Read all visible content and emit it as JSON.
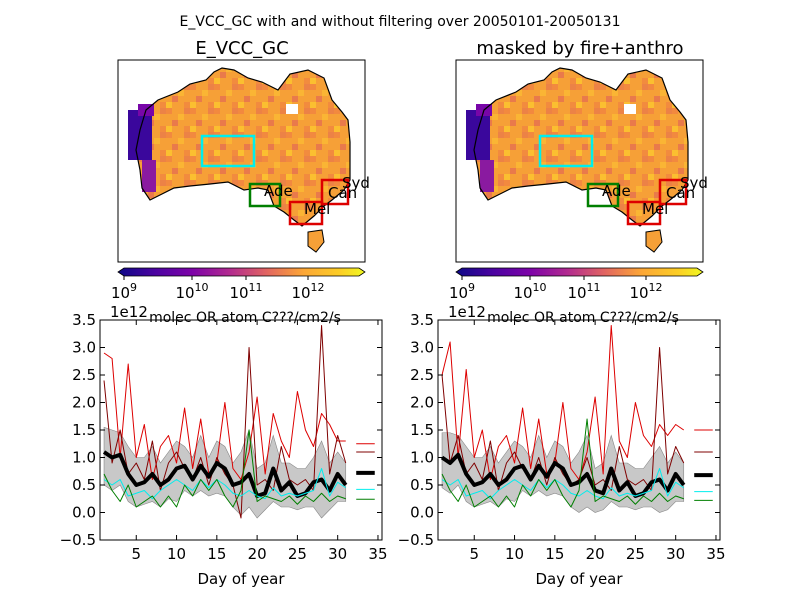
{
  "figure": {
    "suptitle": "E_VCC_GC with and without filtering over 20050101-20050131"
  },
  "maps": [
    {
      "title": "E_VCC_GC",
      "colorbar": {
        "tick_labels": [
          "10^9",
          "10^10",
          "10^11",
          "10^12"
        ],
        "exponents": [
          "9",
          "10",
          "11",
          "12"
        ],
        "base": "10",
        "label": "molec OR atom C???/cm2/s"
      },
      "regions": [
        {
          "name": "Syd",
          "color": "#dd0000"
        },
        {
          "name": "Can",
          "color": "#dd0000"
        },
        {
          "name": "Mel",
          "color": "#dd0000"
        },
        {
          "name": "Ade",
          "color": "#007f00"
        },
        {
          "name": "",
          "color": "#00eeee"
        }
      ]
    },
    {
      "title": "masked by fire+anthro",
      "colorbar": {
        "tick_labels": [
          "10^9",
          "10^10",
          "10^11",
          "10^12"
        ],
        "exponents": [
          "9",
          "10",
          "11",
          "12"
        ],
        "base": "10",
        "label": "molec OR atom C???/cm2/s"
      },
      "regions": [
        {
          "name": "Syd",
          "color": "#dd0000"
        },
        {
          "name": "Can",
          "color": "#dd0000"
        },
        {
          "name": "Mel",
          "color": "#dd0000"
        },
        {
          "name": "Ade",
          "color": "#007f00"
        },
        {
          "name": "",
          "color": "#00eeee"
        }
      ]
    }
  ],
  "chart_data": [
    {
      "type": "line",
      "xlabel": "Day of year",
      "ylabel": "",
      "xlim": [
        0.5,
        35.5
      ],
      "ylim": [
        -0.5,
        3.5
      ],
      "xticks": [
        5,
        10,
        15,
        20,
        25,
        30,
        35
      ],
      "yticks": [
        -0.5,
        0.0,
        0.5,
        1.0,
        1.5,
        2.0,
        2.5,
        3.0,
        3.5
      ],
      "ytick_labels": [
        "−0.5",
        "0.0",
        "0.5",
        "1.0",
        "1.5",
        "2.0",
        "2.5",
        "3.0",
        "3.5"
      ],
      "y_offset_label": "1e12",
      "x": [
        1,
        2,
        3,
        4,
        5,
        6,
        7,
        8,
        9,
        10,
        11,
        12,
        13,
        14,
        15,
        16,
        17,
        18,
        19,
        20,
        21,
        22,
        23,
        24,
        25,
        26,
        27,
        28,
        29,
        30,
        31
      ],
      "series": [
        {
          "color": "#dd0000",
          "linewidth": 1,
          "values": [
            2.9,
            2.8,
            1.0,
            2.7,
            1.0,
            1.6,
            0.6,
            1.2,
            1.4,
            0.9,
            1.9,
            0.8,
            1.7,
            0.7,
            0.9,
            2.0,
            0.8,
            0.6,
            1.1,
            2.1,
            0.7,
            1.8,
            1.3,
            1.0,
            2.2,
            1.5,
            1.2,
            1.8,
            1.6,
            1.3,
            1.3
          ],
          "legend_y": 1.25
        },
        {
          "color": "#7f0000",
          "linewidth": 1,
          "values": [
            2.4,
            0.9,
            1.5,
            0.7,
            0.9,
            0.6,
            1.3,
            0.4,
            0.9,
            1.1,
            0.8,
            0.6,
            1.0,
            0.5,
            1.0,
            0.7,
            0.5,
            -0.1,
            3.0,
            0.5,
            0.6,
            0.4,
            1.2,
            0.6,
            0.5,
            0.6,
            0.4,
            3.4,
            0.7,
            1.4,
            0.9
          ],
          "legend_y": 1.1
        },
        {
          "color": "#000000",
          "linewidth": 4,
          "values": [
            1.1,
            1.0,
            1.05,
            0.7,
            0.5,
            0.55,
            0.7,
            0.5,
            0.6,
            0.8,
            0.85,
            0.6,
            0.85,
            0.65,
            0.9,
            0.8,
            0.5,
            0.55,
            0.7,
            0.3,
            0.35,
            0.8,
            0.4,
            0.55,
            0.3,
            0.35,
            0.55,
            0.6,
            0.4,
            0.7,
            0.5
          ],
          "legend_y": 0.72
        },
        {
          "color": "#00eeee",
          "linewidth": 1,
          "values": [
            0.6,
            0.5,
            0.6,
            0.3,
            0.35,
            0.4,
            0.25,
            0.4,
            0.5,
            0.6,
            0.5,
            0.4,
            0.6,
            0.45,
            0.6,
            0.5,
            0.35,
            0.3,
            0.4,
            0.3,
            0.25,
            0.45,
            0.3,
            0.35,
            0.3,
            0.35,
            0.4,
            0.8,
            0.3,
            0.55,
            0.45
          ],
          "legend_y": 0.42
        },
        {
          "color": "#007f00",
          "linewidth": 1,
          "values": [
            0.7,
            0.4,
            0.2,
            0.5,
            0.1,
            0.2,
            0.3,
            0.1,
            0.3,
            0.1,
            0.5,
            0.3,
            0.6,
            0.4,
            0.6,
            0.3,
            0.1,
            0.4,
            1.5,
            0.2,
            0.3,
            0.25,
            0.2,
            0.3,
            0.15,
            0.3,
            0.2,
            0.35,
            0.2,
            0.3,
            0.25
          ],
          "legend_y": 0.24
        }
      ],
      "band": {
        "color": "#c8c8c8",
        "lower": [
          0.5,
          0.4,
          0.5,
          0.2,
          0.1,
          0.15,
          0.2,
          0.1,
          0.25,
          0.2,
          0.4,
          0.3,
          0.4,
          0.3,
          0.35,
          0.3,
          0.1,
          -0.05,
          0.1,
          -0.1,
          0.05,
          0.2,
          0.1,
          0.1,
          0.05,
          0.1,
          0.1,
          -0.1,
          0.05,
          0.2,
          0.2
        ],
        "upper": [
          1.55,
          1.5,
          1.45,
          1.2,
          1.0,
          1.0,
          1.2,
          0.9,
          1.1,
          1.3,
          1.2,
          1.0,
          1.4,
          1.0,
          1.3,
          1.2,
          0.9,
          1.1,
          1.5,
          0.8,
          0.9,
          1.4,
          0.9,
          0.9,
          0.8,
          0.8,
          1.0,
          1.3,
          0.9,
          1.1,
          0.9
        ]
      }
    },
    {
      "type": "line",
      "xlabel": "Day of year",
      "ylabel": "",
      "xlim": [
        0.5,
        35.5
      ],
      "ylim": [
        -0.5,
        3.5
      ],
      "xticks": [
        5,
        10,
        15,
        20,
        25,
        30,
        35
      ],
      "yticks": [
        -0.5,
        0.0,
        0.5,
        1.0,
        1.5,
        2.0,
        2.5,
        3.0,
        3.5
      ],
      "ytick_labels": [
        "−0.5",
        "0.0",
        "0.5",
        "1.0",
        "1.5",
        "2.0",
        "2.5",
        "3.0",
        "3.5"
      ],
      "y_offset_label": "1e12",
      "x": [
        1,
        2,
        3,
        4,
        5,
        6,
        7,
        8,
        9,
        10,
        11,
        12,
        13,
        14,
        15,
        16,
        17,
        18,
        19,
        20,
        21,
        22,
        23,
        24,
        25,
        26,
        27,
        28,
        29,
        30,
        31
      ],
      "series": [
        {
          "color": "#dd0000",
          "linewidth": 1,
          "values": [
            2.5,
            3.1,
            1.0,
            2.6,
            1.0,
            1.5,
            0.6,
            1.2,
            1.4,
            0.9,
            1.9,
            0.8,
            1.7,
            0.7,
            0.9,
            2.0,
            0.8,
            0.6,
            1.1,
            2.1,
            0.7,
            3.4,
            1.3,
            1.0,
            2.0,
            1.4,
            1.2,
            1.6,
            1.4,
            1.6,
            1.5
          ],
          "legend_y": 1.5
        },
        {
          "color": "#7f0000",
          "linewidth": 1,
          "values": [
            2.5,
            0.9,
            1.4,
            0.7,
            0.9,
            0.6,
            1.3,
            0.4,
            0.9,
            1.1,
            0.8,
            0.6,
            1.0,
            0.5,
            1.0,
            0.7,
            0.5,
            0.6,
            1.0,
            0.5,
            0.6,
            0.4,
            1.2,
            0.6,
            0.5,
            0.6,
            0.4,
            3.0,
            0.7,
            1.2,
            0.9
          ],
          "legend_y": 1.1
        },
        {
          "color": "#000000",
          "linewidth": 4,
          "values": [
            1.0,
            0.9,
            1.05,
            0.7,
            0.5,
            0.55,
            0.7,
            0.5,
            0.6,
            0.8,
            0.85,
            0.6,
            0.85,
            0.65,
            0.9,
            0.8,
            0.5,
            0.55,
            0.7,
            0.4,
            0.35,
            0.8,
            0.4,
            0.55,
            0.3,
            0.35,
            0.55,
            0.6,
            0.4,
            0.7,
            0.5
          ],
          "legend_y": 0.68
        },
        {
          "color": "#00eeee",
          "linewidth": 1,
          "values": [
            0.6,
            0.5,
            0.6,
            0.3,
            0.35,
            0.4,
            0.25,
            0.4,
            0.5,
            0.6,
            0.5,
            0.4,
            0.6,
            0.45,
            0.6,
            0.5,
            0.35,
            0.3,
            0.4,
            0.3,
            0.25,
            0.45,
            0.3,
            0.35,
            0.3,
            0.35,
            0.4,
            0.8,
            0.3,
            0.55,
            0.45
          ],
          "legend_y": 0.38
        },
        {
          "color": "#007f00",
          "linewidth": 1,
          "values": [
            0.7,
            0.4,
            0.2,
            0.5,
            0.1,
            0.2,
            0.3,
            0.1,
            0.3,
            0.1,
            0.5,
            0.3,
            0.6,
            0.4,
            0.6,
            0.3,
            0.1,
            0.4,
            1.7,
            0.2,
            0.3,
            0.25,
            0.2,
            0.3,
            0.15,
            0.3,
            0.2,
            0.35,
            0.2,
            0.3,
            0.25
          ],
          "legend_y": 0.22
        }
      ],
      "band": {
        "color": "#c8c8c8",
        "lower": [
          0.45,
          0.35,
          0.5,
          0.2,
          0.1,
          0.15,
          0.2,
          0.1,
          0.25,
          0.2,
          0.4,
          0.3,
          0.4,
          0.3,
          0.35,
          0.3,
          0.1,
          0.0,
          0.1,
          0.0,
          0.05,
          0.2,
          0.1,
          0.1,
          0.05,
          0.1,
          0.1,
          0.0,
          0.05,
          0.2,
          0.2
        ],
        "upper": [
          1.45,
          1.45,
          1.4,
          1.2,
          1.0,
          1.0,
          1.2,
          0.9,
          1.1,
          1.3,
          1.2,
          1.0,
          1.4,
          1.0,
          1.3,
          1.2,
          0.9,
          1.1,
          1.4,
          0.8,
          0.9,
          1.4,
          0.9,
          0.9,
          0.8,
          0.8,
          1.0,
          1.2,
          0.9,
          1.1,
          0.9
        ]
      }
    }
  ]
}
